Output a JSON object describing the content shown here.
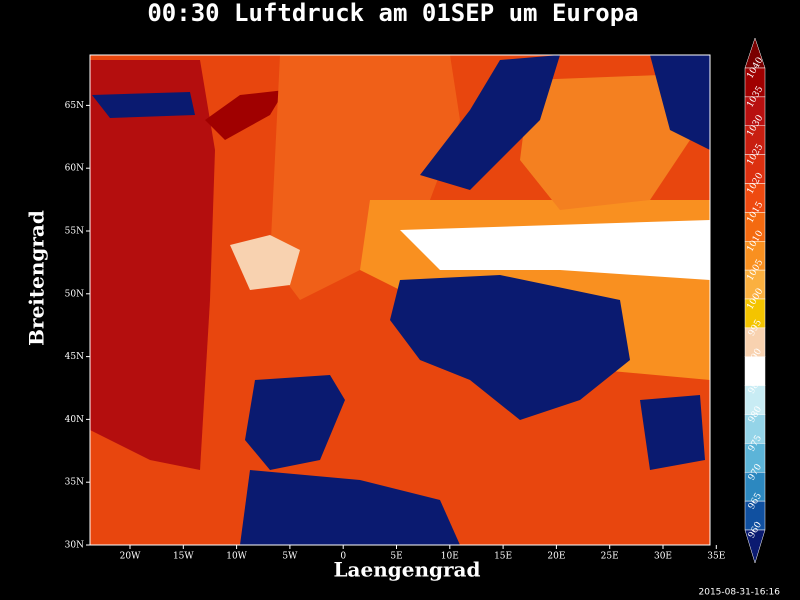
{
  "title": "00:30 Luftdruck am 01SEP um Europa",
  "x_axis": {
    "label": "Laengengrad",
    "ticks": [
      "20W",
      "15W",
      "10W",
      "5W",
      "0",
      "5E",
      "10E",
      "15E",
      "20E",
      "25E",
      "30E",
      "35E"
    ]
  },
  "y_axis": {
    "label": "Breitengrad",
    "ticks": [
      "30N",
      "35N",
      "40N",
      "45N",
      "50N",
      "55N",
      "60N",
      "65N"
    ]
  },
  "colorbar": {
    "labels": [
      1040,
      1035,
      1030,
      1025,
      1020,
      1015,
      1010,
      1005,
      1000,
      995,
      990,
      985,
      980,
      975,
      970,
      965,
      960
    ],
    "colors": [
      "#7a0000",
      "#a00000",
      "#b81010",
      "#c81e10",
      "#dc3010",
      "#ee4a10",
      "#f46a10",
      "#f99020",
      "#fbb040",
      "#f4c400",
      "#f8d2b0",
      "#ffffff",
      "#c8ecf4",
      "#94d4e8",
      "#5cb4d8",
      "#2c88c0",
      "#1050a0",
      "#0a1a70"
    ]
  },
  "timestamp": "2015-08-31-16:16"
}
